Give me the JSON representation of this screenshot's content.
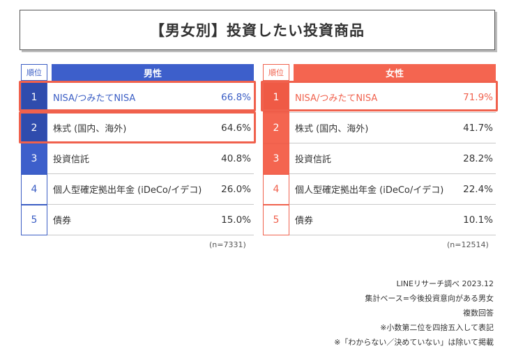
{
  "title": "【男女別】投資したい投資商品",
  "rank_header": "順位",
  "colors": {
    "men": "#3d5fcb",
    "women": "#f46550",
    "highlight_outline": "#f0614d"
  },
  "chart_data": [
    {
      "type": "table",
      "series_name": "男性",
      "n_label": "(n=7331)",
      "highlighted_ranks": [
        1,
        2
      ],
      "rows": [
        {
          "rank": "1",
          "item": "NISA/つみたてNISA",
          "value": "66.8%"
        },
        {
          "rank": "2",
          "item": "株式 (国内、海外)",
          "value": "64.6%"
        },
        {
          "rank": "3",
          "item": "投資信託",
          "value": "40.8%"
        },
        {
          "rank": "4",
          "item": "個人型確定拠出年金 (iDeCo/イデコ)",
          "value": "26.0%"
        },
        {
          "rank": "5",
          "item": "債券",
          "value": "15.0%"
        }
      ]
    },
    {
      "type": "table",
      "series_name": "女性",
      "n_label": "(n=12514)",
      "highlighted_ranks": [
        1
      ],
      "rows": [
        {
          "rank": "1",
          "item": "NISA/つみたてNISA",
          "value": "71.9%"
        },
        {
          "rank": "2",
          "item": "株式 (国内、海外)",
          "value": "41.7%"
        },
        {
          "rank": "3",
          "item": "投資信託",
          "value": "28.2%"
        },
        {
          "rank": "4",
          "item": "個人型確定拠出年金 (iDeCo/イデコ)",
          "value": "22.4%"
        },
        {
          "rank": "5",
          "item": "債券",
          "value": "10.1%"
        }
      ]
    }
  ],
  "notes": [
    "LINEリサーチ調べ 2023.12",
    "集計ベース=今後投資意向がある男女",
    "複数回答",
    "※小数第二位を四捨五入して表記",
    "※「わからない／決めていない」は除いて掲載"
  ]
}
